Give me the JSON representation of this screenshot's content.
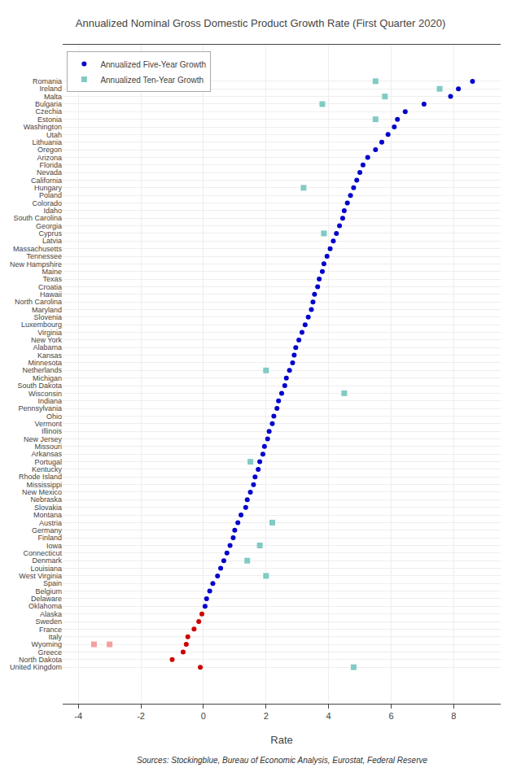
{
  "chart_data": {
    "type": "scatter",
    "title": "Annualized Nominal Gross Domestic Product Growth Rate (First Quarter 2020)",
    "x_label": "Rate",
    "annotations": [
      "Sources: Stockingblue, Bureau of Economic Analysis, Eurostat, Federal Reserve"
    ],
    "xlim": [
      -4.5,
      9.5
    ],
    "xticks": [
      -4,
      -2,
      0,
      2,
      4,
      6,
      8
    ],
    "grid": true,
    "legend": "upper left",
    "orientation": "horizontal",
    "categories": [
      "Romania",
      "Ireland",
      "Malta",
      "Bulgaria",
      "Czechia",
      "Estonia",
      "Washington",
      "Utah",
      "Lithuania",
      "Oregon",
      "Arizona",
      "Florida",
      "Nevada",
      "California",
      "Hungary",
      "Poland",
      "Colorado",
      "Idaho",
      "South Carolina",
      "Georgia",
      "Cyprus",
      "Latvia",
      "Massachusetts",
      "Tennessee",
      "New Hampshire",
      "Maine",
      "Texas",
      "Croatia",
      "Hawaii",
      "North Carolina",
      "Maryland",
      "Slovenia",
      "Luxembourg",
      "Virginia",
      "New York",
      "Alabama",
      "Kansas",
      "Minnesota",
      "Netherlands",
      "Michigan",
      "South Dakota",
      "Wisconsin",
      "Indiana",
      "Pennsylvania",
      "Ohio",
      "Vermont",
      "Illinois",
      "New Jersey",
      "Missouri",
      "Arkansas",
      "Portugal",
      "Kentucky",
      "Rhode Island",
      "Mississippi",
      "New Mexico",
      "Nebraska",
      "Slovakia",
      "Montana",
      "Austria",
      "Germany",
      "Finland",
      "Iowa",
      "Connecticut",
      "Denmark",
      "Louisiana",
      "West Virginia",
      "Spain",
      "Belgium",
      "Delaware",
      "Oklahoma",
      "Alaska",
      "Sweden",
      "France",
      "Italy",
      "Wyoming",
      "Greece",
      "North Dakota",
      "United Kingdom"
    ],
    "series": [
      {
        "name": "Annualized Five-Year Growth",
        "marker": "circle",
        "values": [
          8.6,
          8.15,
          7.9,
          7.05,
          6.45,
          6.2,
          6.1,
          5.9,
          5.7,
          5.5,
          5.25,
          5.1,
          5.0,
          4.9,
          4.8,
          4.7,
          4.6,
          4.5,
          4.45,
          4.35,
          4.25,
          4.15,
          4.05,
          3.95,
          3.85,
          3.8,
          3.7,
          3.65,
          3.55,
          3.5,
          3.45,
          3.35,
          3.25,
          3.15,
          3.05,
          2.95,
          2.9,
          2.85,
          2.75,
          2.65,
          2.6,
          2.5,
          2.4,
          2.35,
          2.25,
          2.2,
          2.1,
          2.05,
          1.95,
          1.9,
          1.8,
          1.75,
          1.65,
          1.6,
          1.5,
          1.4,
          1.35,
          1.2,
          1.1,
          1.0,
          0.95,
          0.85,
          0.75,
          0.65,
          0.55,
          0.45,
          0.3,
          0.2,
          0.1,
          0.05,
          -0.05,
          -0.15,
          -0.3,
          -0.5,
          -0.55,
          -0.65,
          -1.0,
          -0.1
        ],
        "colors": [
          "#0000cc",
          "#0000cc",
          "#0000cc",
          "#0000cc",
          "#0000cc",
          "#0000cc",
          "#0000cc",
          "#0000cc",
          "#0000cc",
          "#0000cc",
          "#0000cc",
          "#0000cc",
          "#0000cc",
          "#0000cc",
          "#0000cc",
          "#0000cc",
          "#0000cc",
          "#0000cc",
          "#0000cc",
          "#0000cc",
          "#0000cc",
          "#0000cc",
          "#0000cc",
          "#0000cc",
          "#0000cc",
          "#0000cc",
          "#0000cc",
          "#0000cc",
          "#0000cc",
          "#0000cc",
          "#0000cc",
          "#0000cc",
          "#0000cc",
          "#0000cc",
          "#0000cc",
          "#0000cc",
          "#0000cc",
          "#0000cc",
          "#0000cc",
          "#0000cc",
          "#0000cc",
          "#0000cc",
          "#0000cc",
          "#0000cc",
          "#0000cc",
          "#0000cc",
          "#0000cc",
          "#0000cc",
          "#0000cc",
          "#0000cc",
          "#0000cc",
          "#0000cc",
          "#0000cc",
          "#0000cc",
          "#0000cc",
          "#0000cc",
          "#0000cc",
          "#0000cc",
          "#0000cc",
          "#0000cc",
          "#0000cc",
          "#0000cc",
          "#0000cc",
          "#0000cc",
          "#0000cc",
          "#0000cc",
          "#0000cc",
          "#0000cc",
          "#0000cc",
          "#0000cc",
          "#cc0000",
          "#cc0000",
          "#cc0000",
          "#cc0000",
          "#cc0000",
          "#cc0000",
          "#cc0000",
          "#cc0000"
        ]
      },
      {
        "name": "Annualized Ten-Year Growth",
        "marker": "square",
        "values": [
          5.5,
          7.55,
          5.8,
          3.8,
          null,
          5.5,
          null,
          null,
          null,
          null,
          null,
          null,
          null,
          null,
          3.2,
          null,
          null,
          null,
          null,
          null,
          3.85,
          null,
          null,
          null,
          null,
          null,
          null,
          null,
          null,
          null,
          null,
          null,
          null,
          null,
          null,
          null,
          null,
          null,
          2.0,
          null,
          null,
          4.5,
          null,
          null,
          null,
          null,
          null,
          null,
          null,
          null,
          1.5,
          null,
          null,
          null,
          null,
          null,
          null,
          null,
          2.2,
          null,
          null,
          1.8,
          null,
          1.4,
          null,
          2.0,
          null,
          null,
          null,
          null,
          null,
          null,
          null,
          null,
          -3.5,
          null,
          null,
          4.8
        ],
        "colors": [
          "#80cbc4",
          "#80cbc4",
          "#80cbc4",
          "#80cbc4",
          null,
          "#80cbc4",
          null,
          null,
          null,
          null,
          null,
          null,
          null,
          null,
          "#80cbc4",
          null,
          null,
          null,
          null,
          null,
          "#80cbc4",
          null,
          null,
          null,
          null,
          null,
          null,
          null,
          null,
          null,
          null,
          null,
          null,
          null,
          null,
          null,
          null,
          null,
          "#80cbc4",
          null,
          null,
          "#80cbc4",
          null,
          null,
          null,
          null,
          null,
          null,
          null,
          null,
          "#80cbc4",
          null,
          null,
          null,
          null,
          null,
          null,
          null,
          "#80cbc4",
          null,
          null,
          "#80cbc4",
          null,
          "#80cbc4",
          null,
          "#80cbc4",
          null,
          null,
          null,
          null,
          null,
          null,
          null,
          null,
          "#f4a0a0",
          null,
          null,
          "#80cbc4"
        ]
      },
      {
        "name": "Annualized Ten-Year Growth",
        "marker": "square",
        "values": [
          null,
          null,
          null,
          null,
          null,
          null,
          null,
          null,
          null,
          null,
          null,
          null,
          null,
          null,
          null,
          null,
          null,
          null,
          null,
          null,
          null,
          null,
          null,
          null,
          null,
          null,
          null,
          null,
          null,
          null,
          null,
          null,
          null,
          null,
          null,
          null,
          null,
          null,
          null,
          null,
          null,
          null,
          null,
          null,
          null,
          null,
          null,
          null,
          null,
          null,
          null,
          null,
          null,
          null,
          null,
          null,
          null,
          null,
          null,
          null,
          null,
          null,
          null,
          null,
          null,
          null,
          null,
          null,
          null,
          null,
          null,
          null,
          null,
          null,
          -3.0,
          null,
          null,
          null
        ],
        "colors": [
          null,
          null,
          null,
          null,
          null,
          null,
          null,
          null,
          null,
          null,
          null,
          null,
          null,
          null,
          null,
          null,
          null,
          null,
          null,
          null,
          null,
          null,
          null,
          null,
          null,
          null,
          null,
          null,
          null,
          null,
          null,
          null,
          null,
          null,
          null,
          null,
          null,
          null,
          null,
          null,
          null,
          null,
          null,
          null,
          null,
          null,
          null,
          null,
          null,
          null,
          null,
          null,
          null,
          null,
          null,
          null,
          null,
          null,
          null,
          null,
          null,
          null,
          null,
          null,
          null,
          null,
          null,
          null,
          null,
          null,
          null,
          null,
          null,
          null,
          "#f4a0a0",
          null,
          null,
          null
        ]
      }
    ]
  }
}
